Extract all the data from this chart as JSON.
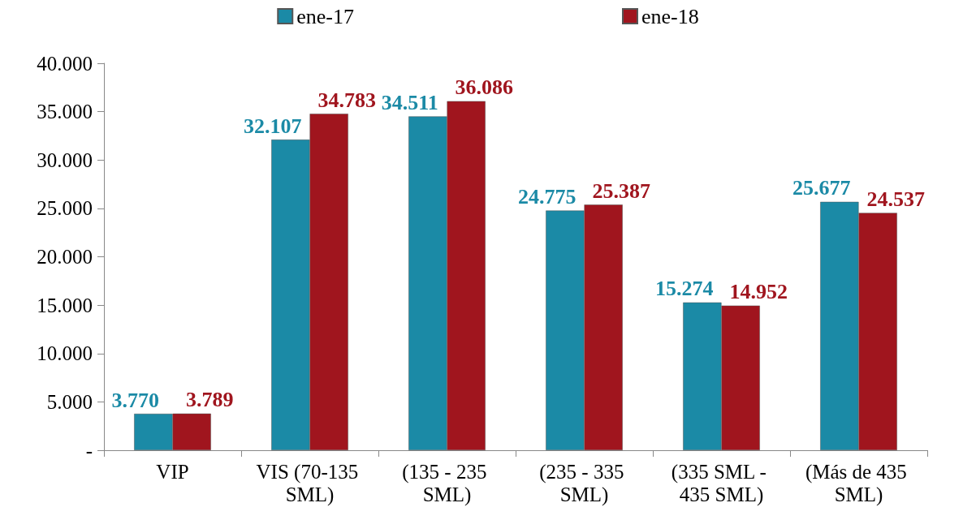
{
  "chart_data": {
    "type": "bar",
    "categories": [
      "VIP",
      "VIS (70-135 SML)",
      "(135 - 235 SML)",
      "(235 - 335 SML)",
      "(335 SML - 435 SML)",
      "(Más de 435 SML)"
    ],
    "series": [
      {
        "name": "ene-17",
        "color": "#1b8aa6",
        "values": [
          3770,
          32107,
          34511,
          24775,
          15274,
          25677
        ],
        "value_labels": [
          "3.770",
          "32.107",
          "34.511",
          "24.775",
          "15.274",
          "25.677"
        ]
      },
      {
        "name": "ene-18",
        "color": "#a0151e",
        "values": [
          3789,
          34783,
          36086,
          25387,
          14952,
          24537
        ],
        "value_labels": [
          "3.789",
          "34.783",
          "36.086",
          "25.387",
          "14.952",
          "24.537"
        ]
      }
    ],
    "ylim": [
      0,
      40000
    ],
    "yticks": [
      {
        "value": 0,
        "label": "-"
      },
      {
        "value": 5000,
        "label": "5.000"
      },
      {
        "value": 10000,
        "label": "10.000"
      },
      {
        "value": 15000,
        "label": "15.000"
      },
      {
        "value": 20000,
        "label": "20.000"
      },
      {
        "value": 25000,
        "label": "25.000"
      },
      {
        "value": 30000,
        "label": "30.000"
      },
      {
        "value": 35000,
        "label": "35.000"
      },
      {
        "value": 40000,
        "label": "40.000"
      }
    ],
    "grid": false,
    "legend": "top"
  }
}
